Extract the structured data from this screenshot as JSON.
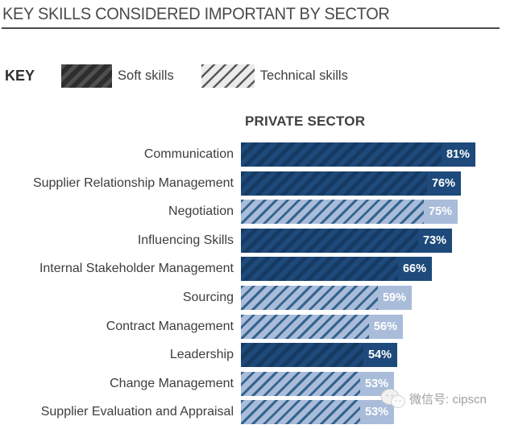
{
  "page_title": "KEY SKILLS CONSIDERED IMPORTANT BY SECTOR",
  "legend": {
    "key_label": "KEY",
    "items": [
      {
        "label": "Soft skills",
        "type": "soft"
      },
      {
        "label": "Technical skills",
        "type": "technical"
      }
    ]
  },
  "chart_data": {
    "type": "bar",
    "orientation": "horizontal",
    "title": "PRIVATE SECTOR",
    "value_unit": "%",
    "xlim": [
      0,
      100
    ],
    "grid": false,
    "legend_position": "top-left",
    "categories": [
      "Communication",
      "Supplier Relationship Management",
      "Negotiation",
      "Influencing Skills",
      "Internal Stakeholder Management",
      "Sourcing",
      "Contract Management",
      "Leadership",
      "Change Management",
      "Supplier Evaluation and Appraisal"
    ],
    "values": [
      81,
      76,
      75,
      73,
      66,
      59,
      56,
      54,
      53,
      53
    ],
    "series_by_category": [
      "Soft skills",
      "Soft skills",
      "Technical skills",
      "Soft skills",
      "Soft skills",
      "Technical skills",
      "Technical skills",
      "Soft skills",
      "Technical skills",
      "Technical skills"
    ],
    "data_labels": [
      "81%",
      "76%",
      "75%",
      "73%",
      "66%",
      "59%",
      "56%",
      "54%",
      "53%",
      "53%"
    ]
  },
  "colors": {
    "soft_bar": "#1d4a7a",
    "soft_bar_hatch": "rgba(8,28,55,0.35)",
    "technical_bar": "#a9bcd9",
    "technical_bar_hatch": "#35648f",
    "key_soft_swatch": "#2d2d2d",
    "key_technical_swatch": "#ebebeb",
    "value_label_text": "#ffffff",
    "category_label_text": "#3d3d3d",
    "title_text": "#4a4a4a"
  },
  "watermark": {
    "icon": "wechat-logo",
    "text": "微信号: cipscn"
  }
}
